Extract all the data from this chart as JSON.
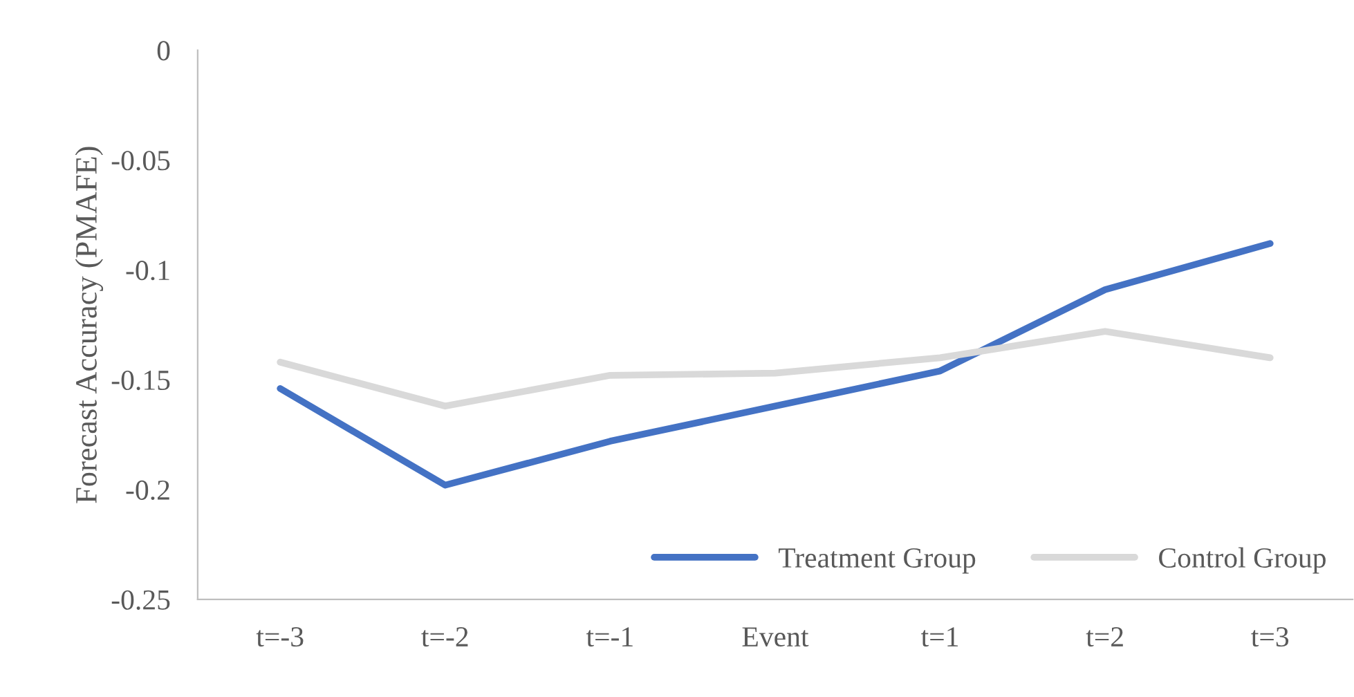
{
  "chart_data": {
    "type": "line",
    "ylabel": "Forecast Accuracy (PMAFE)",
    "categories": [
      "t=-3",
      "t=-2",
      "t=-1",
      "Event",
      "t=1",
      "t=2",
      "t=3"
    ],
    "series": [
      {
        "name": "Treatment Group",
        "color": "#4472c4",
        "values": [
          -0.154,
          -0.198,
          -0.178,
          -0.162,
          -0.146,
          -0.109,
          -0.088
        ]
      },
      {
        "name": "Control Group",
        "color": "#d9d9d9",
        "values": [
          -0.142,
          -0.162,
          -0.148,
          -0.147,
          -0.14,
          -0.128,
          -0.14
        ]
      }
    ],
    "ylim": [
      -0.25,
      0
    ],
    "yticks": [
      -0.25,
      -0.2,
      -0.15,
      -0.1,
      -0.05,
      0
    ],
    "grid": false,
    "legend": "bottom right",
    "marker": "none",
    "line_style": "solid"
  }
}
